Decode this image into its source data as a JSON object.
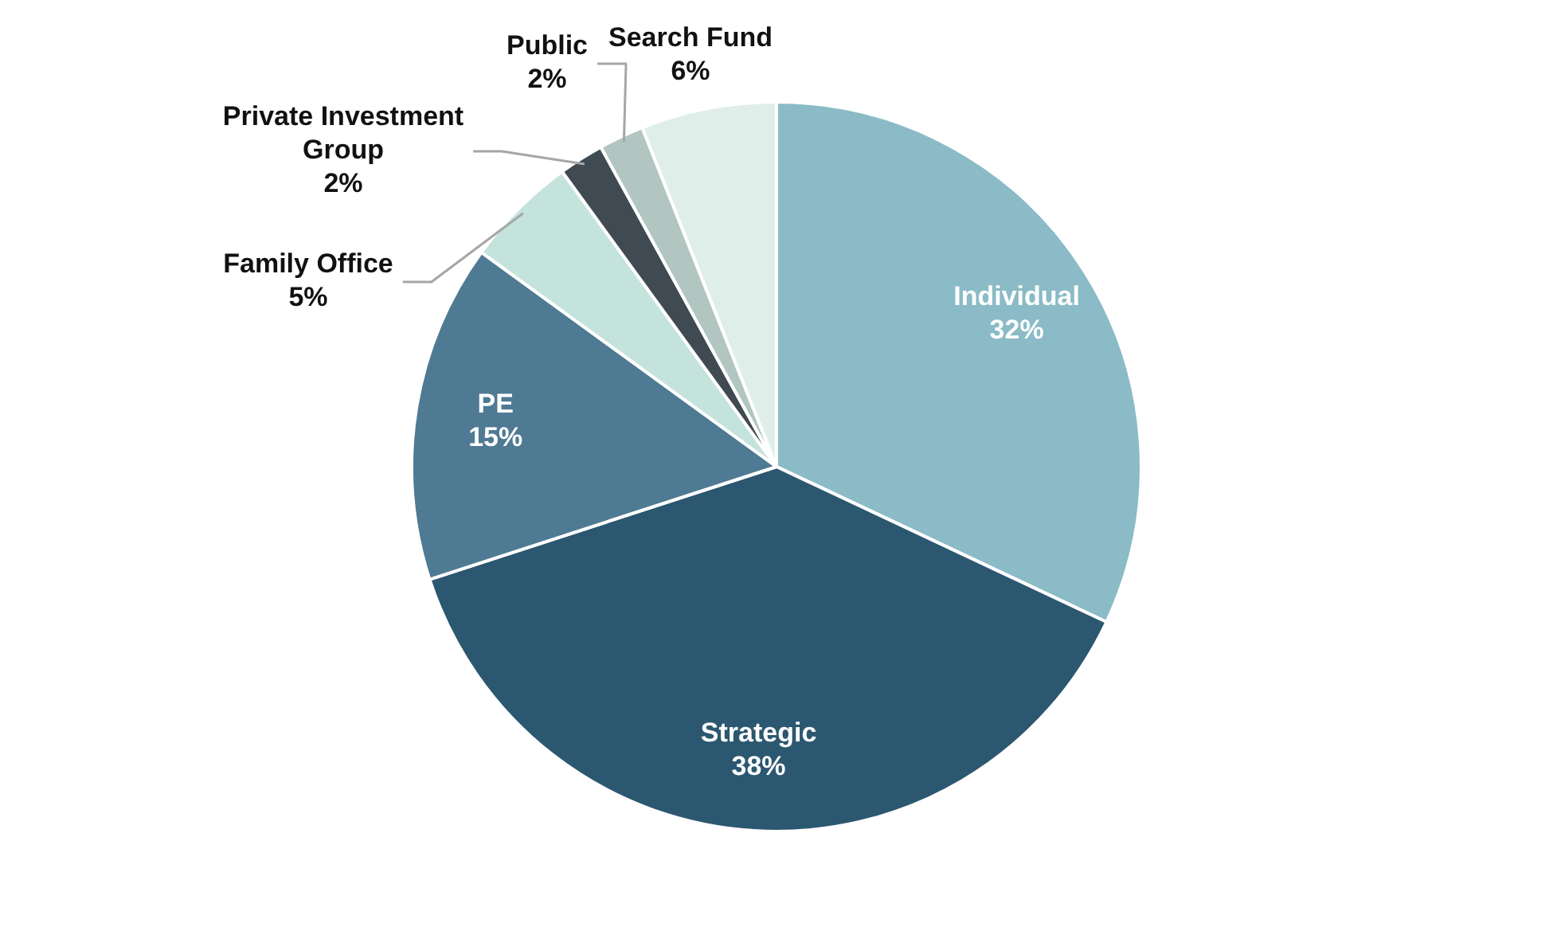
{
  "chart_data": {
    "type": "pie",
    "categories": [
      "Individual",
      "Strategic",
      "PE",
      "Family Office",
      "Private Investment Group",
      "Public",
      "Search Fund"
    ],
    "values": [
      32,
      38,
      15,
      5,
      2,
      2,
      6
    ],
    "colors": [
      "#8abbc6",
      "#2c5770",
      "#4f7a93",
      "#c5e3dd",
      "#3f4a52",
      "#b1c6c0",
      "#dfeee9"
    ],
    "value_labels": [
      "32%",
      "38%",
      "15%",
      "5%",
      "2%",
      "2%",
      "6%"
    ],
    "legend": false
  }
}
